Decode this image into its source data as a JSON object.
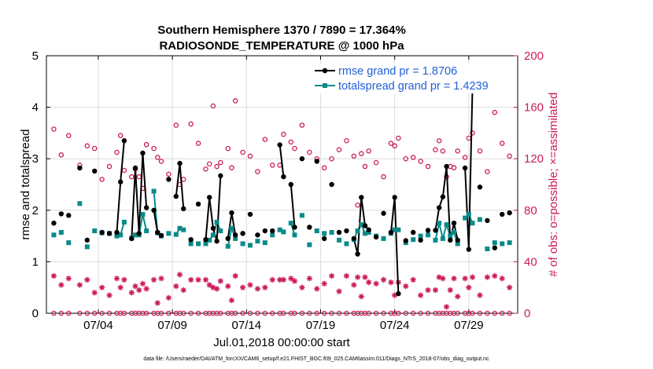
{
  "chart_data": {
    "type": "line",
    "title": "Southern Hemisphere 1370 / 7890 = 17.364%",
    "subtitle": "RADIOSONDE_TEMPERATURE @ 1000 hPa",
    "xlabel": "Jul.01,2018 00:00:00 start",
    "ylabel": "rmse and totalspread",
    "y2label": "# of obs: o=possible; ×=assimilated",
    "xlim": [
      0.5,
      32.3
    ],
    "ylim": [
      0,
      5
    ],
    "y2lim": [
      0,
      200
    ],
    "x_ticks": [
      4,
      9,
      14,
      19,
      24,
      29
    ],
    "x_tick_labels": [
      "07/04",
      "07/09",
      "07/14",
      "07/19",
      "07/24",
      "07/29"
    ],
    "y_ticks": [
      0,
      1,
      2,
      3,
      4,
      5
    ],
    "y2_ticks": [
      0,
      40,
      80,
      120,
      160,
      200
    ],
    "grid": true,
    "legend_position": "top-right",
    "colors": {
      "rmse": "#000000",
      "spread": "#0b8a8a",
      "obs": "#cc1a5c",
      "legend_text": "#1f5fd6",
      "right_axis": "#cc1a5c"
    },
    "series": [
      {
        "name": "rmse grand pr = 1.8706",
        "x": [
          1.0,
          1.5,
          2.0,
          2.75,
          3.25,
          3.75,
          4.25,
          4.75,
          5.25,
          5.5,
          5.75,
          6.25,
          6.5,
          6.75,
          7.0,
          7.25,
          7.75,
          8.0,
          8.25,
          8.75,
          9.25,
          9.5,
          9.75,
          10.25,
          10.75,
          11.25,
          11.5,
          11.75,
          12.0,
          12.25,
          12.75,
          13.0,
          13.25,
          13.75,
          14.25,
          14.75,
          15.25,
          15.75,
          16.25,
          16.5,
          17.0,
          17.25,
          17.75,
          18.25,
          18.75,
          19.25,
          19.75,
          20.25,
          20.75,
          21.25,
          21.5,
          21.75,
          22.0,
          22.25,
          22.75,
          23.25,
          23.75,
          24.0,
          24.25,
          24.75,
          25.25,
          25.75,
          26.25,
          26.75,
          27.0,
          27.25,
          27.5,
          27.75,
          28.0,
          28.25,
          28.75,
          29.0,
          29.25,
          29.75,
          30.25,
          30.75,
          31.25,
          31.75
        ],
        "y": [
          1.75,
          1.93,
          1.9,
          2.82,
          1.42,
          2.76,
          1.57,
          1.55,
          1.57,
          2.55,
          3.35,
          1.45,
          2.82,
          1.55,
          3.11,
          2.05,
          2.0,
          1.57,
          1.51,
          2.6,
          2.27,
          2.91,
          2.03,
          1.43,
          2.12,
          1.43,
          2.25,
          1.65,
          1.4,
          2.67,
          1.45,
          1.95,
          1.52,
          1.55,
          1.92,
          1.52,
          1.6,
          1.6,
          3.27,
          2.65,
          2.5,
          1.67,
          3.0,
          1.67,
          2.95,
          1.45,
          2.5,
          1.57,
          1.6,
          1.45,
          1.15,
          2.25,
          1.7,
          1.62,
          1.48,
          1.94,
          1.57,
          2.25,
          0.38,
          1.41,
          1.57,
          1.42,
          1.61,
          1.61,
          2.05,
          2.26,
          2.85,
          1.42,
          1.75,
          1.42,
          2.82,
          1.24,
          4.38,
          2.45,
          1.8,
          1.27,
          1.92,
          1.95
        ]
      },
      {
        "name": "totalspread grand pr = 1.4239",
        "x": [
          1.0,
          1.5,
          2.0,
          2.75,
          3.25,
          3.75,
          4.25,
          4.75,
          5.25,
          5.5,
          5.75,
          6.25,
          6.5,
          6.75,
          7.0,
          7.25,
          7.75,
          8.0,
          8.25,
          8.75,
          9.25,
          9.5,
          9.75,
          10.25,
          10.75,
          11.25,
          11.5,
          11.75,
          12.0,
          12.25,
          12.75,
          13.0,
          13.25,
          13.75,
          14.25,
          14.75,
          15.25,
          15.75,
          16.25,
          16.5,
          17.0,
          17.25,
          17.75,
          18.25,
          18.75,
          19.25,
          19.75,
          20.25,
          20.75,
          21.25,
          21.5,
          21.75,
          22.0,
          22.25,
          22.75,
          23.25,
          23.75,
          24.0,
          24.25,
          24.75,
          25.25,
          25.75,
          26.25,
          26.75,
          27.0,
          27.25,
          27.5,
          27.75,
          28.0,
          28.25,
          28.75,
          29.0,
          29.25,
          29.75,
          30.25,
          30.75,
          31.25,
          31.75
        ],
        "y": [
          1.52,
          1.57,
          1.37,
          2.13,
          1.29,
          1.6,
          1.56,
          1.55,
          1.5,
          1.52,
          1.77,
          1.46,
          1.52,
          1.52,
          1.92,
          1.6,
          2.37,
          1.56,
          1.5,
          1.55,
          1.53,
          1.65,
          1.62,
          1.35,
          1.35,
          1.35,
          1.42,
          1.52,
          1.77,
          1.6,
          1.3,
          1.65,
          1.45,
          1.35,
          1.32,
          1.4,
          1.37,
          1.52,
          1.62,
          1.58,
          1.75,
          1.52,
          1.9,
          1.33,
          1.6,
          1.55,
          1.57,
          1.42,
          1.35,
          1.43,
          1.6,
          1.72,
          1.55,
          1.57,
          1.5,
          1.45,
          1.55,
          1.62,
          1.62,
          1.37,
          1.43,
          1.5,
          1.52,
          1.42,
          1.75,
          1.45,
          1.72,
          1.5,
          1.57,
          1.35,
          1.85,
          1.92,
          1.75,
          1.82,
          1.25,
          1.37,
          1.35,
          1.37
        ]
      },
      {
        "name": "obs possible",
        "x": [
          1.0,
          1.5,
          2.0,
          2.75,
          3.25,
          3.75,
          4.25,
          4.75,
          5.25,
          5.5,
          5.75,
          6.25,
          6.5,
          6.75,
          7.0,
          7.25,
          7.75,
          8.0,
          8.25,
          8.75,
          9.25,
          9.5,
          9.75,
          10.25,
          10.75,
          11.25,
          11.5,
          11.75,
          12.0,
          12.25,
          12.75,
          13.0,
          13.25,
          13.75,
          14.25,
          14.75,
          15.25,
          15.75,
          16.25,
          16.5,
          17.0,
          17.25,
          17.75,
          18.25,
          18.75,
          19.25,
          19.75,
          20.25,
          20.75,
          21.25,
          21.5,
          21.75,
          22.0,
          22.25,
          22.75,
          23.25,
          23.75,
          24.0,
          24.25,
          24.75,
          25.25,
          25.75,
          26.25,
          26.75,
          27.0,
          27.25,
          27.5,
          27.75,
          28.0,
          28.25,
          28.75,
          29.0,
          29.25,
          29.75,
          30.25,
          30.75,
          31.25,
          31.75
        ],
        "y": [
          143,
          123,
          138,
          115,
          130,
          128,
          104,
          114,
          125,
          138,
          111,
          106,
          112,
          106,
          97,
          131,
          128,
          121,
          118,
          108,
          146,
          100,
          104,
          147,
          132,
          112,
          116,
          161,
          114,
          117,
          128,
          113,
          165,
          125,
          122,
          110,
          135,
          115,
          115,
          139,
          133,
          128,
          146,
          125,
          120,
          113,
          120,
          127,
          134,
          122,
          84,
          124,
          114,
          126,
          117,
          106,
          132,
          130,
          136,
          120,
          121,
          118,
          114,
          127,
          134,
          126,
          106,
          114,
          113,
          126,
          121,
          136,
          140,
          126,
          110,
          156,
          132,
          122
        ]
      },
      {
        "name": "obs assimilated",
        "x": [
          1.0,
          1.5,
          2.0,
          2.75,
          3.25,
          3.75,
          4.25,
          4.75,
          5.25,
          5.5,
          5.75,
          6.25,
          6.5,
          6.75,
          7.0,
          7.25,
          7.75,
          8.0,
          8.25,
          8.75,
          9.25,
          9.5,
          9.75,
          10.25,
          10.75,
          11.25,
          11.5,
          11.75,
          12.0,
          12.25,
          12.75,
          13.0,
          13.25,
          13.75,
          14.25,
          14.75,
          15.25,
          15.75,
          16.25,
          16.5,
          17.0,
          17.25,
          17.75,
          18.25,
          18.75,
          19.25,
          19.75,
          20.25,
          20.75,
          21.25,
          21.5,
          21.75,
          22.0,
          22.25,
          22.75,
          23.25,
          23.75,
          24.0,
          24.25,
          24.75,
          25.25,
          25.75,
          26.25,
          26.75,
          27.0,
          27.25,
          27.5,
          27.75,
          28.0,
          28.25,
          28.75,
          29.0,
          29.25,
          29.75,
          30.25,
          30.75,
          31.25,
          31.75
        ],
        "y": [
          29,
          22,
          27,
          22,
          26,
          16,
          20,
          14,
          27,
          20,
          26,
          16,
          21,
          18,
          23,
          19,
          26,
          8,
          27,
          12,
          21,
          30,
          18,
          26,
          26,
          26,
          22,
          20,
          19,
          25,
          21,
          10,
          29,
          20,
          22,
          19,
          20,
          26,
          26,
          26,
          27,
          25,
          20,
          27,
          19,
          23,
          29,
          17,
          29,
          22,
          28,
          13,
          28,
          24,
          23,
          26,
          24,
          14,
          24,
          21,
          26,
          14,
          18,
          18,
          28,
          27,
          5,
          18,
          27,
          13,
          27,
          20,
          28,
          14,
          28,
          29,
          27,
          20
        ]
      }
    ]
  },
  "footer": {
    "source_note": "data file: /Users/raeder/DAI/ATM_forcXX/CAM6_setup/f.e21.FHIST_BGC.f09_025.CAM6assim.011/Diags_NTrS_2018-07/obs_diag_output.nc"
  }
}
